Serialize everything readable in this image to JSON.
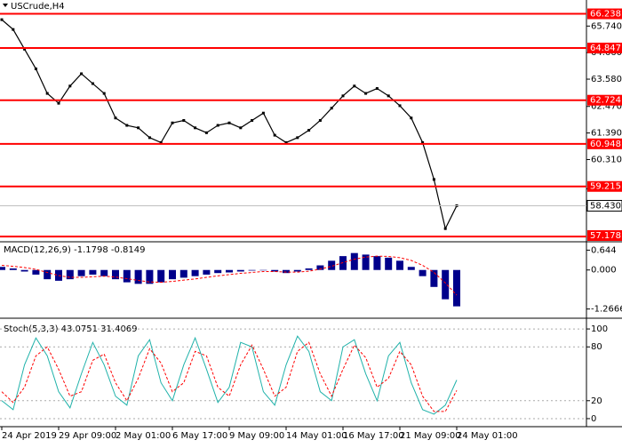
{
  "chart_data": [
    {
      "type": "price",
      "title": "USCrude,H4",
      "categories": [
        "24 Apr 2019",
        null,
        null,
        null,
        null,
        "29 Apr 09:00",
        null,
        null,
        null,
        null,
        "2 May 01:00",
        null,
        null,
        null,
        null,
        "6 May 17:00",
        null,
        null,
        null,
        null,
        "9 May 09:00",
        null,
        null,
        null,
        null,
        "14 May 01:00",
        null,
        null,
        null,
        null,
        "16 May 17:00",
        null,
        null,
        null,
        null,
        "21 May 09:00",
        null,
        null,
        null,
        null,
        "24 May 01:00"
      ],
      "values": [
        66.0,
        65.6,
        64.8,
        64.0,
        63.0,
        62.6,
        63.3,
        63.8,
        63.4,
        63.0,
        62.0,
        61.7,
        61.6,
        61.2,
        61.0,
        61.8,
        61.9,
        61.6,
        61.4,
        61.7,
        61.8,
        61.6,
        61.9,
        62.2,
        61.3,
        61.0,
        61.2,
        61.5,
        61.9,
        62.4,
        62.9,
        63.3,
        63.0,
        63.2,
        62.9,
        62.5,
        62.0,
        61.0,
        59.5,
        57.5,
        58.43
      ],
      "color": "#000000",
      "levels": [
        66.238,
        64.847,
        62.724,
        60.948,
        59.215,
        57.178
      ],
      "level_color": "#ff0000",
      "current_price": {
        "value": 58.43,
        "label": "58.430"
      },
      "ylim": [
        57.0,
        66.8
      ],
      "yticks": [
        {
          "value": 65.74,
          "label": "65.740"
        },
        {
          "value": 64.66,
          "label": "64.660"
        },
        {
          "value": 63.58,
          "label": "63.580"
        },
        {
          "value": 62.47,
          "label": "62.470"
        },
        {
          "value": 61.39,
          "label": "61.390"
        },
        {
          "value": 60.31,
          "label": "60.310"
        },
        {
          "value": 59.12,
          "label": "59.120"
        }
      ]
    },
    {
      "type": "macd",
      "title": "MACD(12,26,9) -1.1798 -0.8149",
      "series": [
        {
          "color": "#00008b",
          "values": [
            0.1,
            0.05,
            -0.05,
            -0.15,
            -0.3,
            -0.35,
            -0.3,
            -0.2,
            -0.15,
            -0.2,
            -0.3,
            -0.4,
            -0.45,
            -0.45,
            -0.4,
            -0.3,
            -0.25,
            -0.2,
            -0.15,
            -0.1,
            -0.08,
            -0.05,
            -0.02,
            0.0,
            -0.05,
            -0.1,
            -0.05,
            0.05,
            0.15,
            0.3,
            0.45,
            0.55,
            0.5,
            0.45,
            0.4,
            0.3,
            0.1,
            -0.2,
            -0.55,
            -0.95,
            -1.1798
          ]
        },
        {
          "color": "#ff0000",
          "values": [
            0.15,
            0.12,
            0.08,
            0.02,
            -0.08,
            -0.18,
            -0.24,
            -0.24,
            -0.22,
            -0.2,
            -0.23,
            -0.28,
            -0.34,
            -0.39,
            -0.4,
            -0.37,
            -0.33,
            -0.29,
            -0.24,
            -0.19,
            -0.15,
            -0.11,
            -0.08,
            -0.05,
            -0.05,
            -0.07,
            -0.07,
            -0.04,
            0.03,
            0.12,
            0.24,
            0.35,
            0.42,
            0.45,
            0.44,
            0.4,
            0.31,
            0.15,
            -0.08,
            -0.42,
            -0.8149
          ]
        }
      ],
      "ylim": [
        -1.45,
        0.8
      ],
      "yticks": [
        0.644,
        {
          "value": 0,
          "label": "0.000"
        },
        -1.2666
      ]
    },
    {
      "type": "stoch",
      "title": "Stoch(5,3,3) 43.0751 31.4069",
      "series": [
        {
          "color": "#20b2aa",
          "values": [
            20,
            10,
            60,
            90,
            70,
            30,
            12,
            50,
            85,
            60,
            25,
            15,
            70,
            88,
            40,
            20,
            60,
            90,
            55,
            18,
            35,
            85,
            80,
            30,
            15,
            60,
            92,
            75,
            30,
            20,
            80,
            88,
            50,
            20,
            70,
            85,
            40,
            10,
            5,
            15,
            43.0751
          ]
        },
        {
          "color": "#ff0000",
          "values": [
            30,
            18,
            35,
            70,
            80,
            55,
            25,
            30,
            65,
            72,
            40,
            20,
            45,
            78,
            62,
            30,
            40,
            75,
            70,
            35,
            25,
            60,
            82,
            55,
            25,
            35,
            75,
            85,
            50,
            25,
            55,
            82,
            68,
            35,
            45,
            75,
            60,
            25,
            8,
            8,
            31.4069
          ]
        }
      ],
      "ylim": [
        -5,
        108
      ],
      "yticks": [
        100,
        80,
        20,
        0
      ]
    }
  ]
}
